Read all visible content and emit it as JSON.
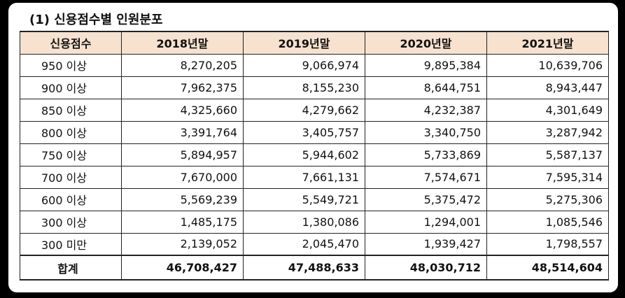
{
  "title": "(1) 신용점수별 인원분포",
  "table": {
    "headers": [
      "신용점수",
      "2018년말",
      "2019년말",
      "2020년말",
      "2021년말"
    ],
    "rows": [
      [
        "950 이상",
        "8,270,205",
        "9,066,974",
        "9,895,384",
        "10,639,706"
      ],
      [
        "900 이상",
        "7,962,375",
        "8,155,230",
        "8,644,751",
        "8,943,447"
      ],
      [
        "850 이상",
        "4,325,660",
        "4,279,662",
        "4,232,387",
        "4,301,649"
      ],
      [
        "800 이상",
        "3,391,764",
        "3,405,757",
        "3,340,750",
        "3,287,942"
      ],
      [
        "750 이상",
        "5,894,957",
        "5,944,602",
        "5,733,869",
        "5,587,137"
      ],
      [
        "700 이상",
        "7,670,000",
        "7,661,131",
        "7,574,671",
        "7,595,314"
      ],
      [
        "600 이상",
        "5,569,239",
        "5,549,721",
        "5,375,472",
        "5,275,306"
      ],
      [
        "300 이상",
        "1,485,175",
        "1,380,086",
        "1,294,001",
        "1,085,546"
      ],
      [
        "300 미만",
        "2,139,052",
        "2,045,470",
        "1,939,427",
        "1,798,557"
      ]
    ],
    "total": [
      "합계",
      "46,708,427",
      "47,488,633",
      "48,030,712",
      "48,514,604"
    ]
  },
  "colors": {
    "header_bg": "#f6e2cf",
    "border": "#222222",
    "frame": "#000000"
  }
}
